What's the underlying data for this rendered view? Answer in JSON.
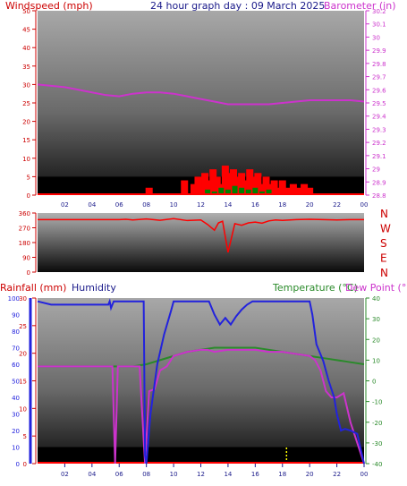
{
  "header": {
    "left_title": "Windspeed (mph)",
    "center_title": "24 hour graph day : 09 March 2025",
    "right_title": "Barometer (in)"
  },
  "colors": {
    "wind": "#ff0000",
    "gust_fill": "#ff0000",
    "wind_avg": "#008000",
    "barometer": "#cc33cc",
    "direction": "#ff0000",
    "rain": "#ff0000",
    "humidity": "#2222dd",
    "temperature": "#2a8a2a",
    "dew_point": "#cc33cc",
    "panel_top": "#a0a0a0",
    "panel_bottom": "#000000",
    "night_band": "#000000",
    "rain_marker": "#ffff00"
  },
  "chart_data": [
    {
      "id": "wind_baro",
      "type": "line",
      "title": "24 hour graph day : 09 March 2025",
      "x_ticks": [
        "02",
        "04",
        "06",
        "08",
        "10",
        "12",
        "14",
        "16",
        "18",
        "20",
        "22",
        "00"
      ],
      "xlim_hours": [
        0,
        24
      ],
      "left_axis": {
        "label": "Windspeed (mph)",
        "ylim": [
          0,
          50
        ],
        "ticks": [
          "0",
          "5",
          "10",
          "15",
          "20",
          "25",
          "30",
          "35",
          "40",
          "45",
          "50"
        ]
      },
      "right_axis": {
        "label": "Barometer (in)",
        "ylim": [
          28.8,
          30.2
        ],
        "ticks": [
          "28.8",
          "28.9",
          "29",
          "29.1",
          "29.2",
          "29.3",
          "29.4",
          "29.5",
          "29.6",
          "29.7",
          "29.8",
          "29.9",
          "30",
          "30.1",
          "30.2"
        ]
      },
      "series": [
        {
          "name": "Barometer (in)",
          "axis": "right",
          "x": [
            0,
            1,
            2,
            3,
            4,
            5,
            6,
            7,
            8,
            9,
            10,
            11,
            12,
            13,
            14,
            15,
            16,
            17,
            18,
            19,
            20,
            21,
            22,
            23,
            24
          ],
          "values": [
            29.64,
            29.63,
            29.62,
            29.6,
            29.58,
            29.56,
            29.55,
            29.57,
            29.58,
            29.58,
            29.57,
            29.55,
            29.53,
            29.51,
            29.49,
            29.49,
            29.49,
            29.49,
            29.5,
            29.51,
            29.52,
            29.52,
            29.52,
            29.52,
            29.51
          ]
        },
        {
          "name": "Wind gust",
          "axis": "left",
          "x": [
            0,
            7.8,
            8.2,
            10.5,
            10.8,
            11.2,
            11.5,
            11.8,
            12,
            12.3,
            12.6,
            12.9,
            13.2,
            13.5,
            13.8,
            14.1,
            14.4,
            14.7,
            15,
            15.3,
            15.6,
            15.9,
            16.2,
            16.5,
            16.8,
            17.1,
            17.4,
            17.7,
            18,
            18.4,
            18.8,
            19.2,
            19.6,
            20,
            20.3,
            24
          ],
          "values": [
            0,
            0,
            2,
            0,
            4,
            0,
            3,
            5,
            2,
            6,
            4,
            7,
            5,
            3,
            8,
            6,
            7,
            5,
            6,
            4,
            7,
            5,
            6,
            3,
            5,
            3,
            4,
            2,
            4,
            2,
            3,
            2,
            3,
            2,
            0,
            0
          ]
        },
        {
          "name": "Wind average",
          "axis": "left",
          "x": [
            0,
            11.5,
            12,
            12.5,
            13,
            13.5,
            14,
            14.5,
            15,
            15.5,
            16,
            16.5,
            17,
            17.5,
            24
          ],
          "values": [
            0,
            0,
            0.5,
            1.5,
            1,
            2,
            1.5,
            2.5,
            2,
            1.5,
            2,
            1,
            1.5,
            0,
            0
          ]
        }
      ]
    },
    {
      "id": "direction",
      "type": "line",
      "ylim": [
        0,
        360
      ],
      "y_ticks": [
        "0",
        "90",
        "180",
        "270",
        "360"
      ],
      "direction_labels": [
        "N",
        "W",
        "S",
        "E",
        "N"
      ],
      "series": [
        {
          "name": "Wind direction",
          "x": [
            0,
            1,
            2,
            3,
            4,
            5,
            6,
            6.5,
            7,
            8,
            9,
            10,
            11,
            12,
            12.5,
            13,
            13.3,
            13.6,
            14,
            14.5,
            15,
            15.5,
            16,
            16.5,
            17,
            17.5,
            18,
            19,
            20,
            21,
            22,
            23,
            24
          ],
          "values": [
            320,
            320,
            320,
            320,
            320,
            320,
            320,
            322,
            318,
            324,
            316,
            326,
            314,
            318,
            290,
            255,
            300,
            310,
            120,
            295,
            285,
            300,
            305,
            298,
            312,
            318,
            315,
            320,
            322,
            320,
            318,
            320,
            320
          ]
        }
      ]
    },
    {
      "id": "rain_hum_temp",
      "type": "line",
      "x_ticks": [
        "02",
        "04",
        "06",
        "08",
        "10",
        "12",
        "14",
        "16",
        "18",
        "20",
        "22",
        "00"
      ],
      "left_axis_rain": {
        "label": "Rainfall (mm)",
        "ylim": [
          0,
          30
        ],
        "ticks": [
          "0",
          "5",
          "10",
          "15",
          "20",
          "25",
          "30"
        ]
      },
      "left_axis_humidity": {
        "label": "Humidity",
        "ylim": [
          0,
          100
        ],
        "ticks": [
          "0",
          "10",
          "20",
          "30",
          "40",
          "50",
          "60",
          "70",
          "80",
          "90",
          "100"
        ]
      },
      "right_axis": {
        "label_temp": "Temperature (°C)",
        "label_dew": "Dew Point (°C)",
        "ylim": [
          -40,
          40
        ],
        "ticks": [
          "40",
          "30",
          "20",
          "10",
          "0",
          "-10",
          "-20",
          "-30",
          "-40"
        ]
      },
      "series": [
        {
          "name": "Humidity",
          "axis": "humidity",
          "x": [
            0,
            1,
            2,
            3,
            4,
            5,
            5.2,
            5.3,
            5.4,
            5.6,
            5.8,
            6,
            7,
            7.7,
            7.8,
            7.9,
            8,
            8.3,
            8.8,
            9.3,
            9.8,
            10,
            11,
            12,
            12.6,
            13,
            13.4,
            13.8,
            14.2,
            14.6,
            15,
            15.4,
            15.8,
            16,
            17,
            18,
            19,
            20,
            20.2,
            20.5,
            21,
            21.4,
            21.8,
            22,
            22.3,
            22.6,
            23,
            23.5,
            24
          ],
          "values": [
            98,
            96,
            96,
            96,
            96,
            96,
            96,
            98,
            94,
            98,
            98,
            98,
            98,
            98,
            98,
            5,
            0,
            30,
            60,
            78,
            92,
            98,
            98,
            98,
            98,
            90,
            84,
            88,
            84,
            89,
            93,
            96,
            98,
            98,
            98,
            98,
            98,
            98,
            90,
            72,
            62,
            50,
            40,
            30,
            20,
            21,
            20,
            18,
            0
          ]
        },
        {
          "name": "Temperature (°C)",
          "axis": "temp",
          "x": [
            0,
            1,
            2,
            3,
            4,
            5,
            6,
            7,
            8,
            9,
            10,
            11,
            12,
            13,
            14,
            15,
            16,
            17,
            18,
            19,
            20,
            21,
            22,
            23,
            24
          ],
          "values": [
            7,
            7,
            7,
            7,
            7,
            7,
            7,
            7,
            8,
            10,
            12,
            14,
            15,
            16,
            16,
            16,
            16,
            15,
            14,
            13,
            12,
            11,
            10,
            9,
            8
          ]
        },
        {
          "name": "Dew Point (°C)",
          "axis": "temp",
          "x": [
            0,
            1,
            2,
            3,
            4,
            5,
            5.5,
            5.7,
            5.9,
            6.1,
            7,
            7.5,
            7.9,
            8.2,
            8.6,
            9,
            9.5,
            10,
            11,
            12,
            12.5,
            13,
            14,
            15,
            16,
            17,
            18,
            19,
            20,
            20.4,
            20.8,
            21.2,
            21.6,
            22,
            22.5,
            23,
            23.5,
            24
          ],
          "values": [
            7,
            7,
            7,
            7,
            7,
            7,
            7,
            -40,
            7,
            7,
            7,
            7,
            -40,
            -5,
            -4,
            5,
            7,
            12,
            14,
            15,
            15,
            14,
            15,
            15,
            15,
            14,
            14,
            13,
            12,
            10,
            5,
            -5,
            -8,
            -8,
            -6,
            -20,
            -30,
            -40
          ]
        },
        {
          "name": "Rainfall (mm)",
          "axis": "rain",
          "x": [
            0,
            24
          ],
          "values": [
            0,
            0
          ]
        }
      ],
      "rain_marks_hours": [
        5.7,
        18.3
      ]
    }
  ]
}
